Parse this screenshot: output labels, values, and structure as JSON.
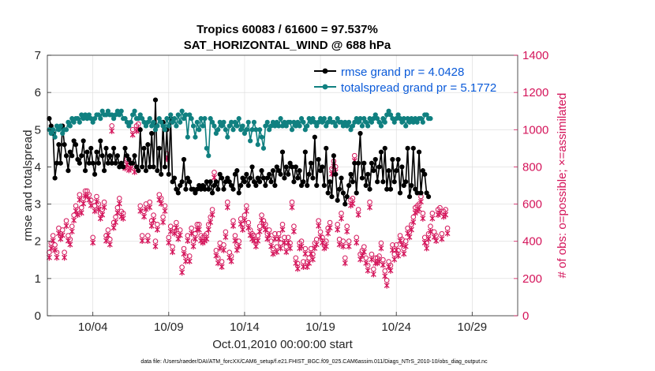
{
  "chart_data": {
    "type": "line",
    "title": [
      "Tropics 60083 / 61600 = 97.537%",
      "SAT_HORIZONTAL_WIND @ 688 hPa"
    ],
    "xlabel": "Oct.01,2010 00:00:00 start",
    "ylabel": "rmse and totalspread",
    "y2label": "# of obs: o=possible; ×=assimilated",
    "xlim": [
      1.0,
      32.0
    ],
    "ylim": [
      0,
      7
    ],
    "y2lim": [
      0,
      1400
    ],
    "x_ticks": [
      {
        "x": 4,
        "label": "10/04"
      },
      {
        "x": 9,
        "label": "10/09"
      },
      {
        "x": 14,
        "label": "10/14"
      },
      {
        "x": 19,
        "label": "10/19"
      },
      {
        "x": 24,
        "label": "10/24"
      },
      {
        "x": 29,
        "label": "10/29"
      }
    ],
    "y_ticks": [
      0,
      1,
      2,
      3,
      4,
      5,
      6,
      7
    ],
    "y2_ticks": [
      0,
      200,
      400,
      600,
      800,
      1000,
      1200,
      1400
    ],
    "grid": true,
    "legend_position": "top-right",
    "footnote": "data file: /Users/raeder/DAI/ATM_forcXX/CAM6_setup/f.e21.FHIST_BGC.f09_025.CAM6assim.011/Diags_NTrS_2010-10/obs_diag_output.nc",
    "colors": {
      "rmse": "#000000",
      "spread": "#108080",
      "obs": "#d4145a",
      "legend_text": "#0a5ad9"
    },
    "series": [
      {
        "name": "rmse grand pr = 4.0428",
        "color": "#000000",
        "x_start": 1.125,
        "x_step": 0.125,
        "values": [
          5.3,
          5.1,
          4.9,
          3.7,
          4.1,
          4.6,
          4.1,
          5.1,
          4.6,
          4.3,
          3.9,
          4.4,
          4.3,
          4.7,
          4.6,
          4.2,
          4.1,
          4.3,
          4.7,
          3.9,
          4.4,
          4.1,
          4.5,
          4.1,
          3.8,
          4.4,
          4.1,
          4.7,
          4.3,
          3.9,
          4.5,
          4.1,
          4.3,
          4.1,
          4.5,
          4.1,
          4.3,
          4.0,
          4.1,
          4.0,
          4.5,
          4.3,
          4.2,
          4.1,
          4.1,
          4.3,
          4.0,
          3.9,
          5.0,
          4.0,
          4.5,
          3.9,
          4.6,
          4.0,
          4.9,
          4.0,
          5.8,
          3.9,
          4.5,
          3.8,
          5.2,
          4.0,
          5.0,
          3.8,
          5.3,
          3.6,
          3.7,
          3.4,
          3.3,
          3.5,
          3.6,
          4.2,
          3.4,
          3.7,
          3.6,
          3.4,
          3.4,
          3.3,
          3.4,
          3.5,
          3.4,
          3.5,
          3.4,
          3.6,
          3.4,
          3.6,
          3.3,
          3.5,
          3.6,
          3.4,
          3.8,
          3.7,
          3.4,
          3.6,
          3.7,
          3.6,
          3.5,
          3.4,
          3.8,
          3.9,
          3.3,
          3.5,
          3.7,
          3.6,
          3.8,
          3.5,
          3.7,
          4.0,
          3.6,
          3.5,
          3.7,
          3.6,
          3.9,
          3.7,
          3.5,
          3.7,
          3.8,
          3.6,
          3.9,
          3.5,
          4.0,
          3.9,
          3.8,
          4.4,
          3.7,
          4.0,
          3.8,
          4.1,
          4.0,
          3.6,
          4.0,
          3.7,
          3.9,
          3.5,
          3.6,
          4.4,
          3.5,
          3.8,
          4.1,
          3.7,
          4.8,
          3.5,
          4.2,
          3.9,
          4.0,
          3.5,
          4.5,
          3.3,
          3.6,
          3.2,
          4.3,
          3.8,
          3.1,
          3.4,
          3.7,
          3.3,
          3.0,
          3.2,
          3.5,
          3.8,
          3.6,
          4.1,
          3.3,
          4.1,
          4.9,
          3.7,
          4.1,
          3.5,
          3.8,
          3.4,
          4.1,
          3.9,
          4.2,
          3.6,
          4.0,
          4.4,
          3.6,
          4.5,
          3.4,
          3.9,
          3.4,
          4.2,
          3.6,
          3.9,
          4.2,
          3.3,
          4.0,
          3.5,
          3.6,
          4.5,
          3.2,
          3.5,
          4.5,
          3.4,
          3.3,
          4.4,
          3.3,
          3.9,
          3.8,
          3.3,
          3.2
        ]
      },
      {
        "name": "totalspread grand pr = 5.1772",
        "color": "#108080",
        "x_start": 1.125,
        "x_step": 0.125,
        "values": [
          5.0,
          4.9,
          5.0,
          4.8,
          5.1,
          5.0,
          5.1,
          4.9,
          5.0,
          5.0,
          5.2,
          5.1,
          5.3,
          5.2,
          5.3,
          5.3,
          5.2,
          5.4,
          5.3,
          5.4,
          5.3,
          5.4,
          5.3,
          5.2,
          5.3,
          5.4,
          5.4,
          5.3,
          5.5,
          5.4,
          5.4,
          5.5,
          5.4,
          5.4,
          5.3,
          5.4,
          5.5,
          5.4,
          5.5,
          5.3,
          5.3,
          5.2,
          5.1,
          5.2,
          5.4,
          5.5,
          5.3,
          5.3,
          5.4,
          5.3,
          5.2,
          5.1,
          5.2,
          5.3,
          5.1,
          5.2,
          5.0,
          5.1,
          5.3,
          5.2,
          5.1,
          5.0,
          5.3,
          5.1,
          5.4,
          5.2,
          5.3,
          5.1,
          5.4,
          5.2,
          5.5,
          5.3,
          5.4,
          4.8,
          5.4,
          5.3,
          5.1,
          4.8,
          5.2,
          5.0,
          5.3,
          5.1,
          5.3,
          4.5,
          4.3,
          5.3,
          5.2,
          5.1,
          4.9,
          5.0,
          5.2,
          5.1,
          5.2,
          5.0,
          4.8,
          5.1,
          5.2,
          5.0,
          5.2,
          5.1,
          5.3,
          5.0,
          5.1,
          4.9,
          5.0,
          5.2,
          4.7,
          5.0,
          5.2,
          5.0,
          4.6,
          5.0,
          4.8,
          4.5,
          5.1,
          5.2,
          5.0,
          5.1,
          5.2,
          5.1,
          5.2,
          5.1,
          5.3,
          5.1,
          5.2,
          5.1,
          5.2,
          5.2,
          5.0,
          5.2,
          5.1,
          5.2,
          5.1,
          5.3,
          5.2,
          5.0,
          5.1,
          5.3,
          5.2,
          5.3,
          5.2,
          5.1,
          5.2,
          5.3,
          5.2,
          5.3,
          5.1,
          5.2,
          5.3,
          5.2,
          5.2,
          5.1,
          5.3,
          5.2,
          5.2,
          5.1,
          5.2,
          5.1,
          5.2,
          5.0,
          5.1,
          5.2,
          5.3,
          5.2,
          5.3,
          5.1,
          5.3,
          5.2,
          5.1,
          5.3,
          5.2,
          5.3,
          5.4,
          5.3,
          5.2,
          5.1,
          5.3,
          5.2,
          5.4,
          5.5,
          5.4,
          5.3,
          5.2,
          5.3,
          5.4,
          5.3,
          5.2,
          5.3,
          5.1,
          5.3,
          5.2,
          5.3,
          5.2,
          5.3,
          5.2,
          5.3,
          5.3,
          5.2,
          5.4,
          5.4,
          5.3,
          5.3
        ]
      }
    ],
    "obs_counts": {
      "axis": "right",
      "x_start": 1.125,
      "x_step": 0.125,
      "values": [
        330,
        380,
        420,
        370,
        330,
        460,
        430,
        450,
        330,
        500,
        420,
        400,
        470,
        530,
        580,
        560,
        640,
        570,
        620,
        660,
        660,
        640,
        610,
        410,
        580,
        630,
        590,
        540,
        560,
        600,
        420,
        450,
        400,
        1010,
        490,
        520,
        570,
        620,
        550,
        540,
        810,
        830,
        800,
        810,
        990,
        790,
        1010,
        1020,
        580,
        420,
        550,
        590,
        420,
        600,
        500,
        530,
        390,
        480,
        640,
        620,
        520,
        580,
        860,
        410,
        470,
        360,
        460,
        490,
        430,
        450,
        250,
        350,
        310,
        420,
        310,
        460,
        390,
        430,
        480,
        480,
        420,
        410,
        420,
        430,
        480,
        520,
        560,
        760,
        340,
        300,
        380,
        280,
        370,
        440,
        600,
        330,
        310,
        500,
        420,
        370,
        390,
        510,
        480,
        530,
        580,
        490,
        450,
        430,
        420,
        390,
        420,
        470,
        530,
        500,
        480,
        430,
        450,
        390,
        350,
        430,
        360,
        430,
        380,
        480,
        410,
        360,
        410,
        380,
        600,
        470,
        300,
        270,
        380,
        390,
        280,
        350,
        280,
        300,
        350,
        320,
        380,
        400,
        500,
        440,
        410,
        380,
        390,
        460,
        490,
        780,
        820,
        790,
        480,
        400,
        540,
        390,
        300,
        470,
        390,
        610,
        620,
        850,
        410,
        560,
        320,
        340,
        360,
        300,
        260,
        600,
        320,
        240,
        300,
        300,
        310,
        380,
        290,
        230,
        180,
        280,
        260,
        370,
        320,
        370,
        340,
        420,
        400,
        350,
        390,
        460,
        440,
        480,
        520,
        570,
        580,
        590,
        630,
        540,
        410,
        380,
        430,
        470,
        540,
        440,
        420,
        560,
        570,
        430,
        550,
        560,
        460
      ]
    }
  }
}
